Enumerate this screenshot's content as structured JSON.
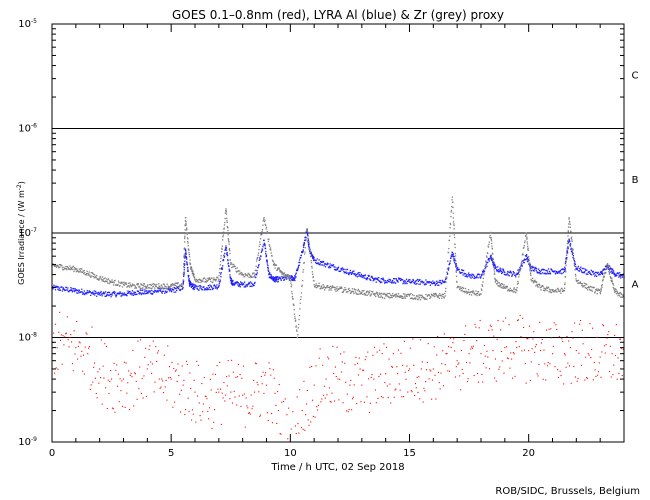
{
  "chart_data": {
    "type": "scatter",
    "title": "GOES 0.1–0.8nm (red), LYRA Al (blue) & Zr (grey) proxy",
    "xlabel": "Time / h UTC, 02 Sep 2018",
    "ylabel": "GOES Irradiance / (W m",
    "ylabel_sup": "-2",
    "ylabel_close": ")",
    "xlim": [
      0,
      24
    ],
    "ylim": [
      1e-09,
      1e-05
    ],
    "yscale": "log",
    "x_ticks": [
      0,
      5,
      10,
      15,
      20
    ],
    "y_ticks": [
      {
        "mantissa": "10",
        "exp": "-9",
        "value": 1e-09
      },
      {
        "mantissa": "10",
        "exp": "-8",
        "value": 1e-08
      },
      {
        "mantissa": "10",
        "exp": "-7",
        "value": 1e-07
      },
      {
        "mantissa": "10",
        "exp": "-6",
        "value": 1e-06
      },
      {
        "mantissa": "10",
        "exp": "-5",
        "value": 1e-05
      }
    ],
    "flare_class_lines": [
      1e-08,
      1e-07,
      1e-06
    ],
    "flare_classes": [
      {
        "label": "A",
        "y": 3.3e-08
      },
      {
        "label": "B",
        "y": 3.3e-07
      },
      {
        "label": "C",
        "y": 3.3e-06
      }
    ],
    "grid": false,
    "legend": "none",
    "series": [
      {
        "color": "#2020ff",
        "x": [
          0,
          0.5,
          1,
          1.5,
          2,
          2.5,
          3,
          3.5,
          4,
          4.5,
          5,
          5.5,
          5.6,
          5.75,
          5.8,
          6,
          6.5,
          7,
          7.3,
          7.5,
          7.6,
          8,
          8.5,
          8.9,
          9.1,
          9.3,
          9.5,
          10,
          10.2,
          10.5,
          10.7,
          10.8,
          11,
          11.5,
          12,
          12.5,
          13,
          13.5,
          14,
          14.5,
          15,
          15.5,
          16,
          16.5,
          16.8,
          17,
          17.5,
          18,
          18.4,
          18.6,
          19,
          19.5,
          19.9,
          20.1,
          20.5,
          21,
          21.5,
          21.7,
          22,
          22.5,
          23,
          23.3,
          23.6,
          24
        ],
        "y": [
          3e-08,
          2.9e-08,
          2.8e-08,
          2.7e-08,
          2.6e-08,
          2.6e-08,
          2.6e-08,
          2.7e-08,
          2.7e-08,
          2.8e-08,
          2.8e-08,
          3e-08,
          7e-08,
          3.5e-08,
          3.2e-08,
          3e-08,
          3e-08,
          3.1e-08,
          7.5e-08,
          3.5e-08,
          3.3e-08,
          3.2e-08,
          3.3e-08,
          8.5e-08,
          4e-08,
          3.6e-08,
          3.6e-08,
          3.7e-08,
          3.7e-08,
          6.5e-08,
          1.05e-07,
          7e-08,
          5.5e-08,
          5e-08,
          4.6e-08,
          4.2e-08,
          3.9e-08,
          3.6e-08,
          3.5e-08,
          3.5e-08,
          3.4e-08,
          3.4e-08,
          3.3e-08,
          3.4e-08,
          6.5e-08,
          4.5e-08,
          3.9e-08,
          3.8e-08,
          6e-08,
          4.6e-08,
          4.2e-08,
          4e-08,
          6e-08,
          4.6e-08,
          4.3e-08,
          4.3e-08,
          4.3e-08,
          8.5e-08,
          4.6e-08,
          4.2e-08,
          4e-08,
          4.8e-08,
          4.1e-08,
          3.8e-08
        ]
      },
      {
        "color": "#808080",
        "x": [
          0,
          0.5,
          1,
          1.5,
          2,
          2.5,
          3,
          3.5,
          4,
          4.5,
          5,
          5.5,
          5.6,
          5.8,
          6,
          6.5,
          7,
          7.3,
          7.5,
          8,
          8.5,
          8.9,
          9.3,
          9.7,
          10,
          10.3,
          10.7,
          11,
          11.5,
          12,
          12.5,
          13,
          13.5,
          14,
          14.5,
          15,
          15.5,
          16,
          16.5,
          16.8,
          17,
          17.5,
          18,
          18.4,
          18.6,
          19,
          19.5,
          19.9,
          20.1,
          20.5,
          21,
          21.5,
          21.7,
          22,
          22.5,
          23,
          23.3,
          23.6,
          24
        ],
        "y": [
          4.9e-08,
          4.7e-08,
          4.5e-08,
          4.1e-08,
          3.7e-08,
          3.4e-08,
          3.2e-08,
          3.1e-08,
          3.1e-08,
          3.1e-08,
          3.1e-08,
          3.2e-08,
          1.4e-07,
          5e-08,
          3.6e-08,
          3.5e-08,
          3.6e-08,
          1.7e-07,
          5e-08,
          4e-08,
          3.9e-08,
          1.4e-07,
          5e-08,
          4e-08,
          3.8e-08,
          1e-08,
          1.1e-07,
          3.2e-08,
          3e-08,
          2.9e-08,
          2.8e-08,
          2.7e-08,
          2.6e-08,
          2.5e-08,
          2.5e-08,
          2.5e-08,
          2.4e-08,
          2.5e-08,
          2.5e-08,
          2.2e-07,
          3e-08,
          2.7e-08,
          2.6e-08,
          1e-07,
          3.4e-08,
          3e-08,
          2.8e-08,
          1e-07,
          3.6e-08,
          3e-08,
          2.8e-08,
          2.8e-08,
          1.4e-07,
          3.5e-08,
          3e-08,
          2.7e-08,
          5e-08,
          2.8e-08,
          2.4e-08
        ]
      },
      {
        "color": "#ff0000",
        "x": [
          0,
          0.5,
          1,
          1.5,
          2,
          2.5,
          3,
          3.5,
          4,
          4.5,
          5,
          5.5,
          6,
          6.5,
          7,
          7.5,
          8,
          8.5,
          9,
          9.5,
          10,
          10.5,
          11,
          11.5,
          12,
          12.5,
          13,
          13.5,
          14,
          14.5,
          15,
          15.5,
          16,
          16.5,
          17,
          17.5,
          18,
          18.5,
          19,
          19.5,
          20,
          20.5,
          21,
          21.5,
          22,
          22.5,
          23,
          23.5,
          24
        ],
        "y": [
          9e-09,
          8.5e-09,
          8e-09,
          7e-09,
          5e-09,
          4e-09,
          4e-09,
          4.5e-09,
          5e-09,
          4e-09,
          4e-09,
          3.5e-09,
          3e-09,
          2.6e-09,
          3e-09,
          3e-09,
          2.8e-09,
          3e-09,
          3.5e-09,
          2e-09,
          1e-09,
          2e-09,
          3.5e-09,
          4e-09,
          4e-09,
          3.5e-09,
          3.5e-09,
          4e-09,
          4.5e-09,
          4.5e-09,
          5e-09,
          5e-09,
          5e-09,
          5.5e-09,
          6e-09,
          7e-09,
          7e-09,
          7.5e-09,
          8e-09,
          8e-09,
          7.5e-09,
          7.5e-09,
          7e-09,
          7e-09,
          7.5e-09,
          7e-09,
          6.5e-09,
          7e-09,
          7e-09
        ]
      }
    ]
  },
  "footer": {
    "credit": "ROB/SIDC, Brussels, Belgium"
  }
}
